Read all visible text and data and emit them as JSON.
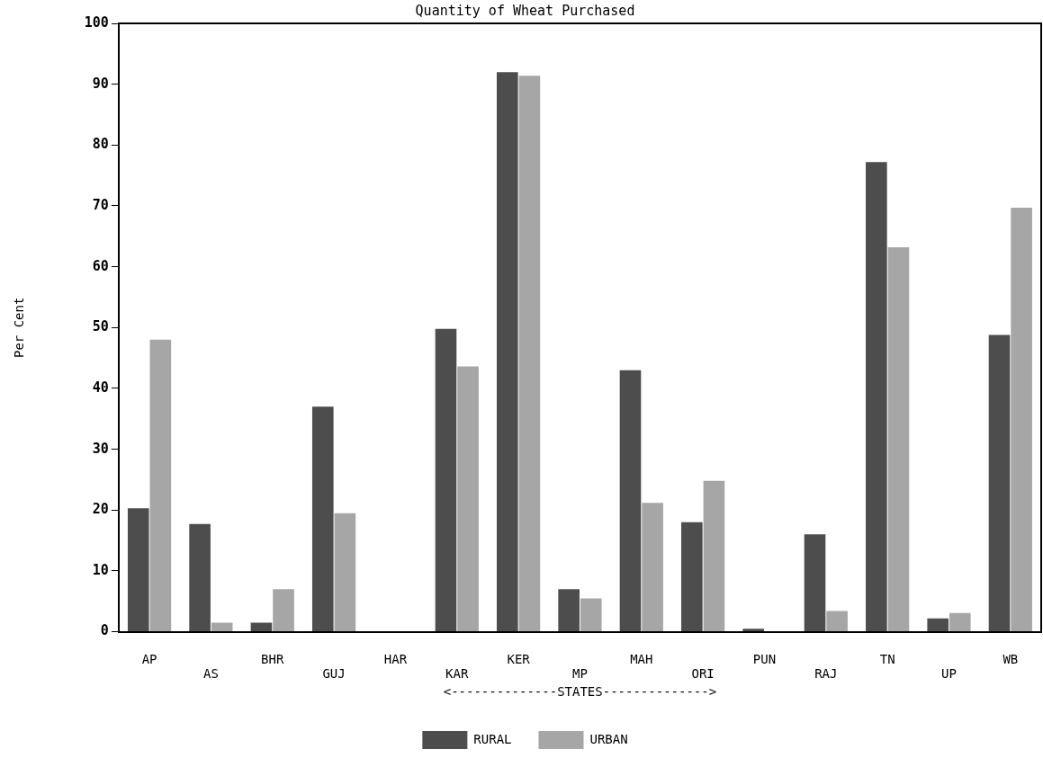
{
  "chart_data": {
    "type": "bar",
    "title": "Quantity of Wheat Purchased",
    "xlabel": "<--------------STATES-------------->",
    "ylabel": "Per Cent",
    "categories": [
      "AP",
      "AS",
      "BHR",
      "GUJ",
      "HAR",
      "KAR",
      "KER",
      "MP",
      "MAH",
      "ORI",
      "PUN",
      "RAJ",
      "TN",
      "UP",
      "WB"
    ],
    "series": [
      {
        "name": "RURAL",
        "color": "#4d4d4d",
        "values": [
          20.3,
          17.7,
          1.5,
          37,
          0,
          49.8,
          92,
          7,
          43,
          18,
          0.5,
          16,
          77.2,
          2.2,
          48.8
        ]
      },
      {
        "name": "URBAN",
        "color": "#a6a6a6",
        "values": [
          48,
          1.5,
          7,
          19.5,
          0,
          43.6,
          91.4,
          5.5,
          21.2,
          24.8,
          0,
          3.4,
          63.2,
          3.1,
          69.7
        ]
      }
    ],
    "ylim": [
      0,
      100
    ],
    "yticks": [
      0,
      10,
      20,
      30,
      40,
      50,
      60,
      70,
      80,
      90,
      100
    ],
    "grid": false,
    "legend": "bottom"
  }
}
